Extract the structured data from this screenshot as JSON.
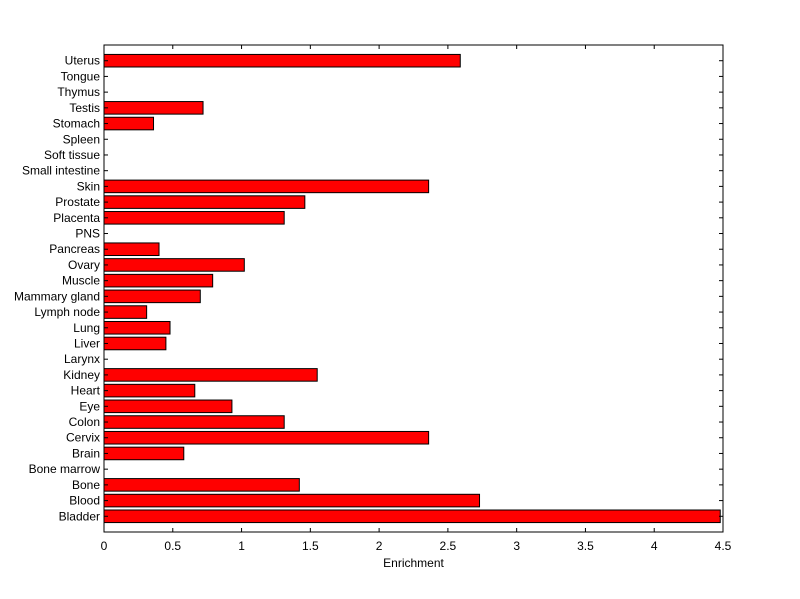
{
  "chart_data": {
    "type": "bar",
    "orientation": "horizontal",
    "title": "",
    "xlabel": "Enrichment",
    "ylabel": "",
    "xlim": [
      0,
      4.5
    ],
    "xticks": [
      "0",
      "0.5",
      "1",
      "1.5",
      "2",
      "2.5",
      "3",
      "3.5",
      "4",
      "4.5"
    ],
    "grid": false,
    "legend": "none",
    "bar_color": "#ff0000",
    "categories": [
      "Bladder",
      "Blood",
      "Bone",
      "Bone marrow",
      "Brain",
      "Cervix",
      "Colon",
      "Eye",
      "Heart",
      "Kidney",
      "Larynx",
      "Liver",
      "Lung",
      "Lymph node",
      "Mammary gland",
      "Muscle",
      "Ovary",
      "Pancreas",
      "PNS",
      "Placenta",
      "Prostate",
      "Skin",
      "Small intestine",
      "Soft tissue",
      "Spleen",
      "Stomach",
      "Testis",
      "Thymus",
      "Tongue",
      "Uterus"
    ],
    "values": [
      4.48,
      2.73,
      1.42,
      0,
      0.58,
      2.36,
      1.31,
      0.93,
      0.66,
      1.55,
      0,
      0.45,
      0.48,
      0.31,
      0.7,
      0.79,
      1.02,
      0.4,
      0,
      1.31,
      1.46,
      2.36,
      0,
      0,
      0,
      0.36,
      0.72,
      0,
      0,
      2.59
    ]
  }
}
